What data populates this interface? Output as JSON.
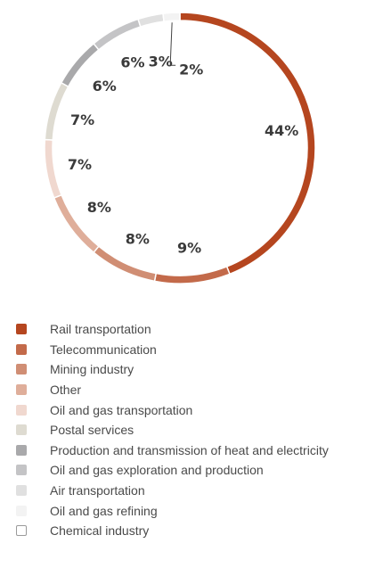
{
  "chart_data": {
    "type": "pie",
    "title": "",
    "categories": [
      "Rail transportation",
      "Telecommunication",
      "Mining industry",
      "Other",
      "Oil and gas transportation",
      "Postal services",
      "Production and transmission of heat and electricity",
      "Oil and gas exploration and production",
      "Air transportation",
      "Oil and gas refining",
      "Chemical industry"
    ],
    "values": [
      44,
      9,
      8,
      8,
      7,
      7,
      6,
      6,
      3,
      2,
      0
    ],
    "labels": [
      "44%",
      "9%",
      "8%",
      "8%",
      "7%",
      "7%",
      "6%",
      "6%",
      "3%",
      "2%",
      ""
    ],
    "colors": [
      "#b5461f",
      "#c36a4a",
      "#d08e74",
      "#dfae9a",
      "#f0d8cf",
      "#dedbd1",
      "#a9a9ab",
      "#c4c4c6",
      "#e0e0e0",
      "#f3f3f3",
      "#ffffff"
    ],
    "legend": "bottom"
  }
}
